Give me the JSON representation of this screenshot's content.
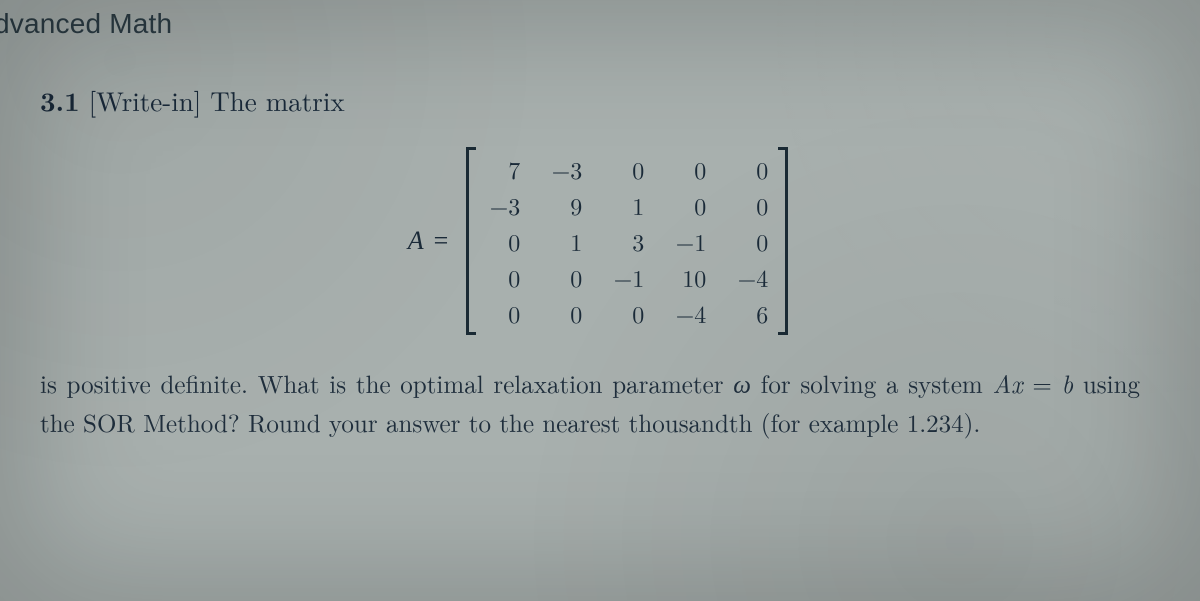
{
  "header": {
    "subject": "dvanced Math"
  },
  "question": {
    "number": "3.1",
    "tag": "[Write-in]",
    "intro": "The matrix",
    "matrix": {
      "lhs": "A",
      "eq": "=",
      "rows": [
        [
          "7",
          "−3",
          "0",
          "0",
          "0"
        ],
        [
          "−3",
          "9",
          "1",
          "0",
          "0"
        ],
        [
          "0",
          "1",
          "3",
          "−1",
          "0"
        ],
        [
          "0",
          "0",
          "−1",
          "10",
          "−4"
        ],
        [
          "0",
          "0",
          "0",
          "−4",
          "6"
        ]
      ],
      "cell_fontsize": 24,
      "bracket_color": "#1a2a34"
    },
    "body_parts": {
      "p1": "is positive definite. What is the optimal relaxation parameter ",
      "omega": "ω",
      "p2": " for solving a system ",
      "Ax": "Ax",
      "eqword": " = ",
      "b": "b",
      "p3": " using the SOR Method? Round your answer to the nearest thousandth (for example 1.234)."
    }
  },
  "style": {
    "background_color": "#a8b0ae",
    "text_color": "#1a2a38",
    "header_fontsize": 28,
    "prompt_fontsize": 27,
    "body_fontsize": 25
  }
}
